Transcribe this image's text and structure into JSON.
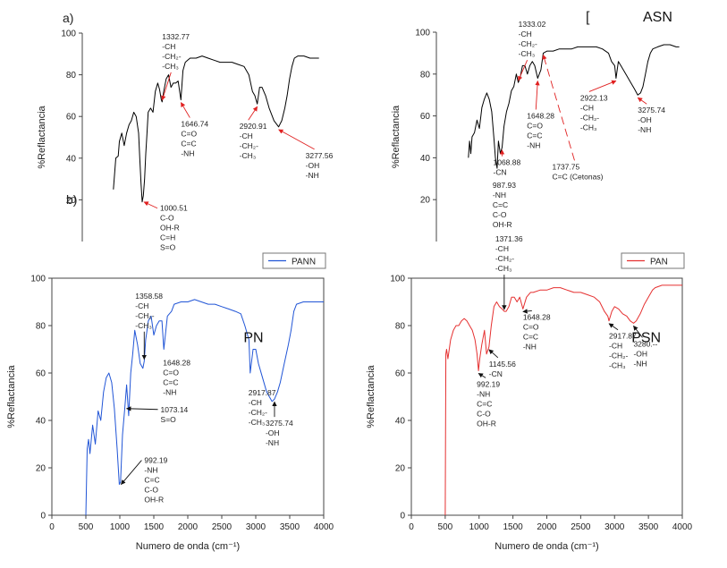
{
  "chart_data": [
    {
      "type": "line",
      "panel_label": "a)",
      "corner_label": "",
      "overlay_label": "b)",
      "sample_label": "",
      "legend": null,
      "xlabel": "",
      "ylabel": "%Reflactancia",
      "xlim": [
        0,
        4000
      ],
      "ylim": [
        0,
        100
      ],
      "yticks": [
        20,
        40,
        60,
        80,
        100
      ],
      "xticks": [],
      "series": [
        {
          "color": "#000000",
          "x": [
            520,
            560,
            600,
            620,
            660,
            700,
            740,
            780,
            820,
            860,
            900,
            940,
            960,
            980,
            1000,
            1020,
            1040,
            1060,
            1080,
            1100,
            1140,
            1180,
            1220,
            1260,
            1290,
            1320,
            1333,
            1360,
            1400,
            1440,
            1480,
            1520,
            1560,
            1600,
            1647,
            1680,
            1720,
            1760,
            1800,
            1900,
            2000,
            2100,
            2200,
            2300,
            2400,
            2500,
            2600,
            2700,
            2780,
            2840,
            2880,
            2921,
            2960,
            3000,
            3060,
            3120,
            3200,
            3278,
            3330,
            3380,
            3420,
            3460,
            3500,
            3540,
            3600,
            3700,
            3800,
            3900,
            3950
          ],
          "y": [
            25,
            40,
            41,
            48,
            52,
            46,
            52,
            56,
            58,
            62,
            60,
            52,
            40,
            28,
            19,
            22,
            30,
            42,
            52,
            62,
            64,
            62,
            72,
            76,
            73,
            68,
            67,
            72,
            78,
            80,
            74,
            76,
            76,
            77,
            68,
            82,
            86,
            87,
            88,
            88,
            89,
            88,
            87,
            86,
            86,
            86,
            85,
            84,
            80,
            72,
            70,
            66,
            74,
            74,
            70,
            64,
            58,
            55,
            58,
            64,
            70,
            78,
            84,
            88,
            89,
            89,
            88,
            88,
            88
          ]
        }
      ],
      "annotations": [
        {
          "x": 1333,
          "y": 67,
          "lines": [
            "1332.77",
            "-CH",
            "-CH₂-",
            "-CH₃"
          ],
          "arrow": "down"
        },
        {
          "x": 1647,
          "y": 68,
          "lines": [
            "1646.74",
            "C=O",
            "C=C",
            "-NH"
          ],
          "arrow": "up"
        },
        {
          "x": 2921,
          "y": 66,
          "lines": [
            "2920.91",
            "-CH",
            "-CH₂-",
            "-CH₃"
          ],
          "arrow": "up"
        },
        {
          "x": 3278,
          "y": 55,
          "lines": [
            "3277.56",
            "-OH",
            "-NH"
          ],
          "arrow": "up"
        },
        {
          "x": 1000,
          "y": 19,
          "lines": [
            "1000.51",
            "C-O",
            "OH-R",
            "C=H",
            "S=O"
          ],
          "arrow": "left"
        }
      ]
    },
    {
      "type": "line",
      "panel_label": "",
      "corner_label": "[",
      "overlay_label": "",
      "sample_label": "ASN",
      "legend": null,
      "xlabel": "",
      "ylabel": "%Reflactancia",
      "xlim": [
        0,
        4000
      ],
      "ylim": [
        0,
        100
      ],
      "yticks": [
        20,
        40,
        60,
        80,
        100
      ],
      "xticks": [],
      "series": [
        {
          "color": "#000000",
          "x": [
            520,
            540,
            560,
            580,
            620,
            660,
            700,
            740,
            780,
            820,
            860,
            900,
            940,
            960,
            988,
            1010,
            1040,
            1069,
            1100,
            1140,
            1180,
            1220,
            1260,
            1300,
            1333,
            1360,
            1400,
            1440,
            1480,
            1520,
            1560,
            1600,
            1648,
            1700,
            1738,
            1800,
            1900,
            2000,
            2100,
            2200,
            2300,
            2400,
            2500,
            2600,
            2700,
            2800,
            2850,
            2900,
            2922,
            2960,
            3000,
            3080,
            3160,
            3220,
            3276,
            3320,
            3360,
            3400,
            3440,
            3480,
            3520,
            3600,
            3700,
            3800,
            3900,
            3950
          ],
          "y": [
            40,
            48,
            42,
            50,
            52,
            58,
            54,
            64,
            68,
            71,
            68,
            62,
            48,
            40,
            35,
            48,
            42,
            45,
            55,
            62,
            66,
            72,
            74,
            80,
            76,
            78,
            84,
            84,
            80,
            84,
            86,
            84,
            78,
            82,
            90,
            91,
            91,
            92,
            92,
            92,
            93,
            93,
            93,
            93,
            92,
            90,
            86,
            84,
            78,
            86,
            84,
            80,
            76,
            73,
            70,
            71,
            74,
            80,
            86,
            90,
            92,
            93,
            94,
            94,
            93,
            93
          ]
        }
      ],
      "annotations": [
        {
          "x": 1333,
          "y": 76,
          "lines": [
            "1333.02",
            "-CH",
            "-CH₂-",
            "-CH₃"
          ],
          "arrow": "down"
        },
        {
          "x": 1069,
          "y": 45,
          "lines": [
            "1068.88",
            "-CN"
          ],
          "arrow": "up"
        },
        {
          "x": 988,
          "y": 35,
          "lines": [
            "987.93",
            "-NH",
            "C=C",
            "C-O",
            "OH-R"
          ],
          "arrow": "none"
        },
        {
          "x": 1648,
          "y": 78,
          "lines": [
            "1648.28",
            "C=O",
            "C=C",
            "-NH"
          ],
          "arrow": "up"
        },
        {
          "x": 1738,
          "y": 90,
          "lines": [
            "1737.75",
            "C=C (Cetonas)"
          ],
          "arrow": "dashed"
        },
        {
          "x": 2922,
          "y": 78,
          "lines": [
            "2922.13",
            "-CH",
            "-CH₂-",
            "-CH₃"
          ],
          "arrow": "up"
        },
        {
          "x": 3276,
          "y": 70,
          "lines": [
            "3275.74",
            "-OH",
            "-NH"
          ],
          "arrow": "up"
        }
      ]
    },
    {
      "type": "line",
      "panel_label": "",
      "corner_label": "",
      "overlay_label": "",
      "sample_label": "PN",
      "legend": "PANN",
      "xlabel": "Numero de onda (cm⁻¹)",
      "ylabel": "%Reflactancia",
      "xlim": [
        0,
        4000
      ],
      "ylim": [
        0,
        100
      ],
      "yticks": [
        0,
        20,
        40,
        60,
        80,
        100
      ],
      "xticks": [
        0,
        500,
        1000,
        1500,
        2000,
        2500,
        3000,
        3500,
        4000
      ],
      "series": [
        {
          "color": "#2155d6",
          "x": [
            500,
            520,
            540,
            560,
            600,
            640,
            680,
            720,
            760,
            800,
            840,
            880,
            920,
            960,
            992,
            1010,
            1040,
            1073,
            1100,
            1130,
            1160,
            1190,
            1220,
            1260,
            1300,
            1340,
            1359,
            1380,
            1420,
            1460,
            1500,
            1540,
            1580,
            1620,
            1648,
            1700,
            1760,
            1800,
            1900,
            2000,
            2100,
            2200,
            2300,
            2400,
            2500,
            2600,
            2700,
            2780,
            2840,
            2900,
            2918,
            2960,
            3000,
            3040,
            3100,
            3160,
            3200,
            3240,
            3276,
            3320,
            3360,
            3420,
            3480,
            3520,
            3560,
            3600,
            3700,
            3800,
            3900,
            4000
          ],
          "y": [
            0,
            28,
            32,
            26,
            38,
            30,
            44,
            40,
            52,
            58,
            60,
            56,
            45,
            28,
            13,
            14,
            34,
            45,
            55,
            42,
            60,
            68,
            78,
            72,
            64,
            62,
            65,
            74,
            82,
            84,
            76,
            80,
            82,
            82,
            70,
            84,
            86,
            89,
            90,
            90,
            91,
            90,
            89,
            89,
            88,
            87,
            86,
            85,
            80,
            74,
            60,
            70,
            70,
            64,
            58,
            52,
            50,
            48,
            49,
            52,
            56,
            64,
            72,
            78,
            86,
            89,
            90,
            90,
            90,
            90
          ]
        }
      ],
      "annotations": [
        {
          "x": 1359,
          "y": 65,
          "lines": [
            "1358.58",
            "-CH",
            "-CH₂-",
            "-CH₃"
          ],
          "arrow": "down"
        },
        {
          "x": 1648,
          "y": 70,
          "lines": [
            "1648.28",
            "C=O",
            "C=C",
            "-NH"
          ],
          "arrow": "none"
        },
        {
          "x": 2918,
          "y": 60,
          "lines": [
            "2917.87",
            "-CH",
            "-CH₂-",
            "-CH₃"
          ],
          "arrow": "none"
        },
        {
          "x": 3276,
          "y": 49,
          "lines": [
            "3275.74",
            "-OH",
            "-NH"
          ],
          "arrow": "up"
        },
        {
          "x": 1073,
          "y": 45,
          "lines": [
            "1073.14",
            "S=O"
          ],
          "arrow": "left"
        },
        {
          "x": 992,
          "y": 13,
          "lines": [
            "992.19",
            "-NH",
            "C=C",
            "C-O",
            "OH-R"
          ],
          "arrow": "left"
        }
      ]
    },
    {
      "type": "line",
      "panel_label": "",
      "corner_label": "",
      "overlay_label": "",
      "sample_label": "PSN",
      "legend": "PAN",
      "xlabel": "Numero de onda (cm⁻¹)",
      "ylabel": "%Reflactancia",
      "xlim": [
        0,
        4000
      ],
      "ylim": [
        0,
        100
      ],
      "yticks": [
        0,
        20,
        40,
        60,
        80,
        100
      ],
      "xticks": [
        0,
        500,
        1000,
        1500,
        2000,
        2500,
        3000,
        3500,
        4000
      ],
      "series": [
        {
          "color": "#e53030",
          "x": [
            500,
            510,
            520,
            540,
            580,
            620,
            660,
            700,
            740,
            780,
            820,
            860,
            900,
            940,
            970,
            992,
            1010,
            1040,
            1080,
            1110,
            1146,
            1180,
            1220,
            1260,
            1300,
            1340,
            1371,
            1400,
            1440,
            1480,
            1520,
            1560,
            1600,
            1648,
            1700,
            1760,
            1800,
            1900,
            2000,
            2100,
            2200,
            2300,
            2400,
            2500,
            2600,
            2700,
            2780,
            2850,
            2900,
            2918,
            2960,
            3000,
            3060,
            3120,
            3180,
            3230,
            3280,
            3320,
            3380,
            3440,
            3500,
            3560,
            3600,
            3700,
            3800,
            3900,
            4000
          ],
          "y": [
            0,
            68,
            70,
            66,
            74,
            78,
            80,
            80,
            82,
            83,
            82,
            80,
            78,
            74,
            68,
            61,
            66,
            72,
            78,
            68,
            71,
            80,
            88,
            90,
            88,
            87,
            86,
            86,
            88,
            92,
            92,
            90,
            92,
            87,
            92,
            94,
            94,
            95,
            95,
            96,
            96,
            95,
            94,
            94,
            93,
            92,
            90,
            86,
            84,
            82,
            86,
            88,
            87,
            85,
            84,
            82,
            81,
            82,
            85,
            89,
            92,
            95,
            96,
            97,
            97,
            97,
            97
          ]
        }
      ],
      "annotations": [
        {
          "x": 1371,
          "y": 86,
          "lines": [
            "1371.36",
            "-CH",
            "-CH₂-",
            "-CH₃"
          ],
          "arrow": "down"
        },
        {
          "x": 1146,
          "y": 71,
          "lines": [
            "1145.56",
            "-CN"
          ],
          "arrow": "up"
        },
        {
          "x": 992,
          "y": 61,
          "lines": [
            "992.19",
            "-NH",
            "C=C",
            "C-O",
            "OH-R"
          ],
          "arrow": "up"
        },
        {
          "x": 1648,
          "y": 87,
          "lines": [
            "1648.28",
            "C=O",
            "C=C",
            "-NH"
          ],
          "arrow": "up"
        },
        {
          "x": 2918,
          "y": 82,
          "lines": [
            "2917.87",
            "-CH",
            "-CH₂-",
            "-CH₃"
          ],
          "arrow": "up"
        },
        {
          "x": 3280,
          "y": 81,
          "lines": [
            "3280.--",
            "-OH",
            "-NH"
          ],
          "arrow": "up"
        }
      ]
    }
  ]
}
